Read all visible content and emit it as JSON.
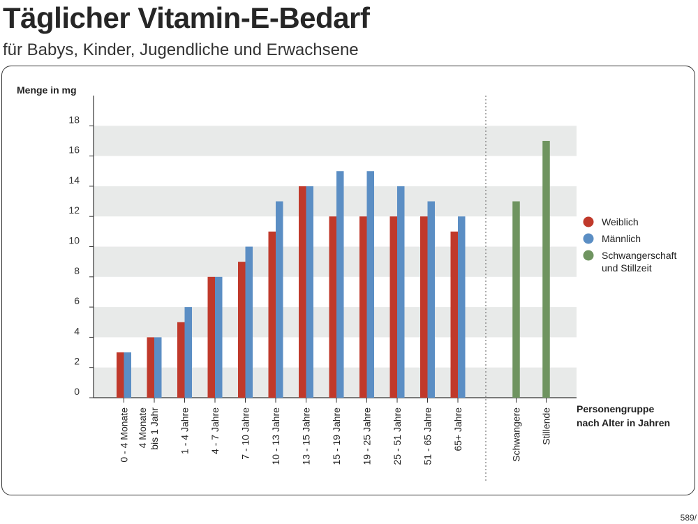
{
  "header": {
    "title": "Täglicher Vitamin-E-Bedarf",
    "subtitle": "für Babys, Kinder, Jugendliche und Erwachsene"
  },
  "footer": {
    "code": "589/"
  },
  "chart_data": {
    "type": "bar",
    "ylabel": "Menge in mg",
    "xlabel_lines": [
      "Personengruppe",
      "nach Alter in Jahren"
    ],
    "ylim": [
      0,
      20
    ],
    "yticks": [
      0,
      2,
      4,
      6,
      8,
      10,
      12,
      14,
      16,
      18
    ],
    "grid": "alternating horizontal bands",
    "legend_position": "right",
    "categories": [
      [
        "0 - 4 Monate"
      ],
      [
        "4 Monate",
        "bis 1 Jahr"
      ],
      [
        "1 - 4 Jahre"
      ],
      [
        "4 - 7 Jahre"
      ],
      [
        "7 - 10 Jahre"
      ],
      [
        "10 - 13 Jahre"
      ],
      [
        "13 - 15 Jahre"
      ],
      [
        "15 - 19 Jahre"
      ],
      [
        "19 - 25 Jahre"
      ],
      [
        "25 - 51 Jahre"
      ],
      [
        "51 - 65 Jahre"
      ],
      [
        "65+ Jahre"
      ]
    ],
    "series": [
      {
        "name": "Weiblich",
        "color": "#c0392b",
        "values": [
          3,
          4,
          5,
          8,
          9,
          11,
          14,
          12,
          12,
          12,
          12,
          11
        ]
      },
      {
        "name": "Männlich",
        "color": "#5b8ec4",
        "values": [
          3,
          4,
          6,
          8,
          10,
          13,
          14,
          15,
          15,
          14,
          13,
          12
        ]
      }
    ],
    "special_categories": [
      "Schwangere",
      "Stillende"
    ],
    "special_series": {
      "name_lines": [
        "Schwangerschaft",
        "und Stillzeit"
      ],
      "color": "#6f9460",
      "values": [
        13,
        17
      ]
    }
  }
}
